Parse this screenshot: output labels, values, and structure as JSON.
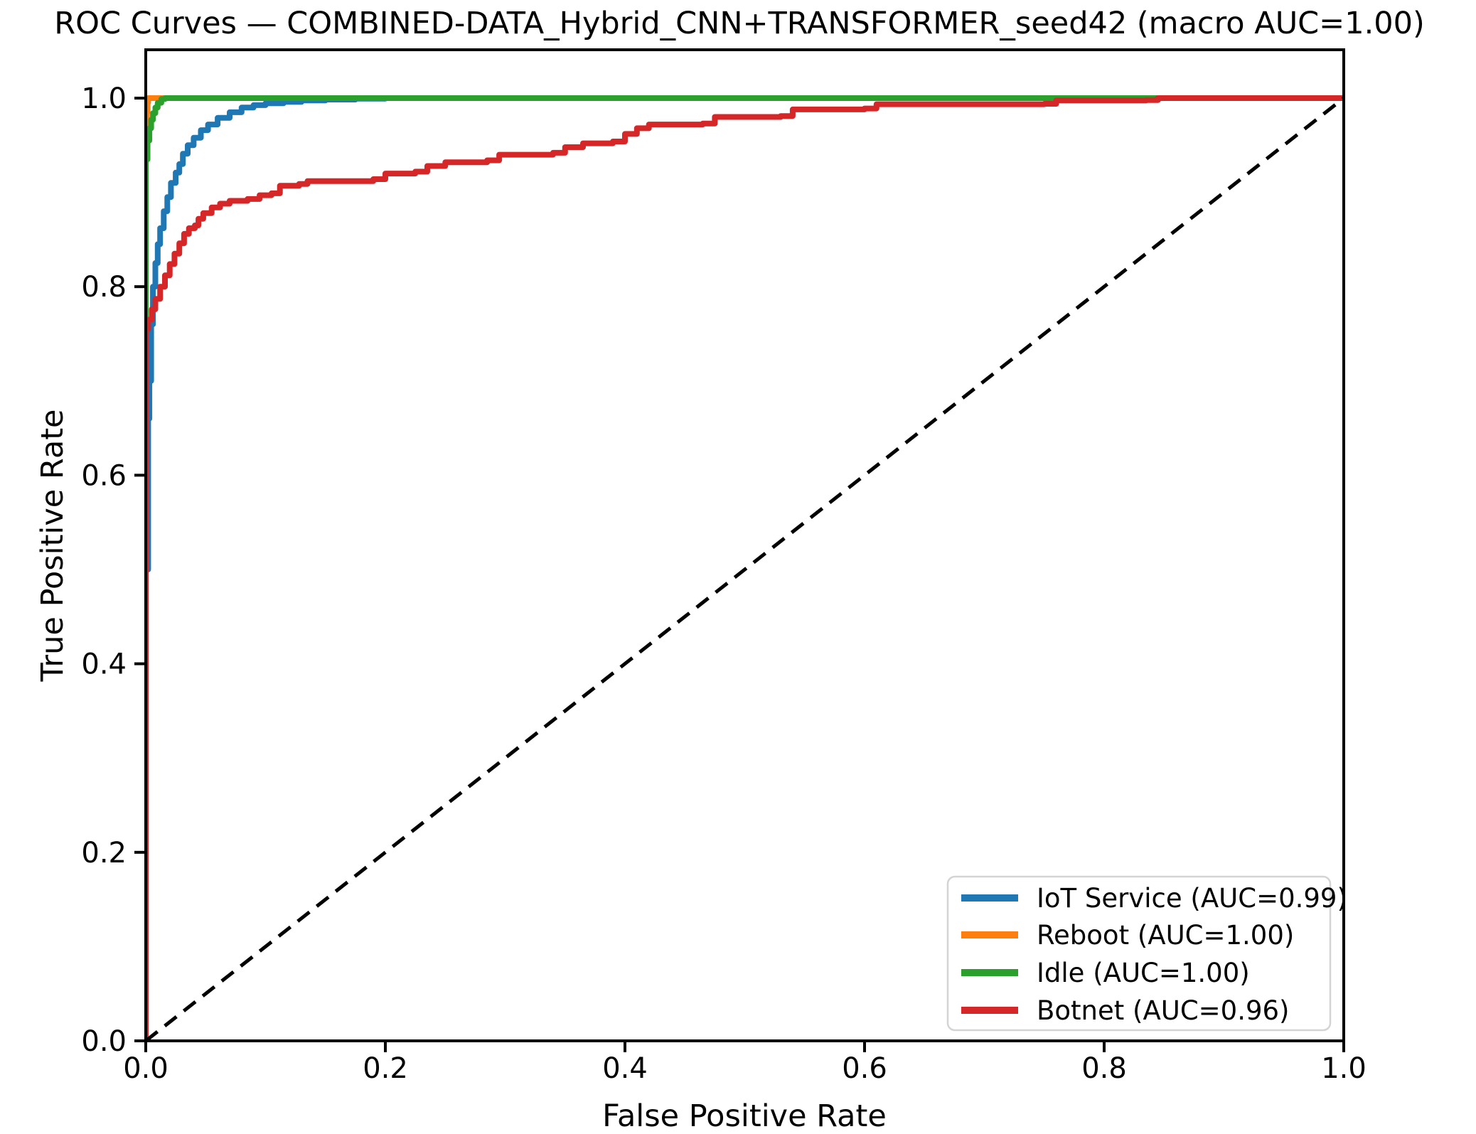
{
  "title": "ROC Curves — COMBINED-DATA_Hybrid_CNN+TRANSFORMER_seed42 (macro AUC=1.00)",
  "chart_data": {
    "type": "line",
    "subtype": "roc-curves",
    "title": "ROC Curves — COMBINED-DATA_Hybrid_CNN+TRANSFORMER_seed42 (macro AUC=1.00)",
    "macro_auc_label": "macro AUC=1.00",
    "xlabel": "False Positive Rate",
    "ylabel": "True Positive Rate",
    "xlim": [
      0.0,
      1.0
    ],
    "ylim": [
      0.0,
      1.05
    ],
    "grid": false,
    "legend_position": "lower right",
    "xticks": [
      {
        "value": 0.0,
        "label": "0.0"
      },
      {
        "value": 0.2,
        "label": "0.2"
      },
      {
        "value": 0.4,
        "label": "0.4"
      },
      {
        "value": 0.6,
        "label": "0.6"
      },
      {
        "value": 0.8,
        "label": "0.8"
      },
      {
        "value": 1.0,
        "label": "1.0"
      }
    ],
    "yticks": [
      {
        "value": 0.0,
        "label": "0.0"
      },
      {
        "value": 0.2,
        "label": "0.2"
      },
      {
        "value": 0.4,
        "label": "0.4"
      },
      {
        "value": 0.6,
        "label": "0.6"
      },
      {
        "value": 0.8,
        "label": "0.8"
      },
      {
        "value": 1.0,
        "label": "1.0"
      }
    ],
    "diagonal": {
      "name": "chance-line",
      "style": "dashed",
      "color": "#000000",
      "points": [
        [
          0,
          0
        ],
        [
          1,
          1
        ]
      ]
    },
    "series": [
      {
        "name": "IoT Service",
        "label": "IoT Service (AUC=0.99)",
        "auc": 0.99,
        "color": "#1f77b4",
        "points": [
          [
            0,
            0
          ],
          [
            0,
            0.5
          ],
          [
            0.002,
            0.66
          ],
          [
            0.003,
            0.7
          ],
          [
            0.0045,
            0.76
          ],
          [
            0.006,
            0.8
          ],
          [
            0.008,
            0.825
          ],
          [
            0.01,
            0.845
          ],
          [
            0.012,
            0.862
          ],
          [
            0.015,
            0.88
          ],
          [
            0.018,
            0.895
          ],
          [
            0.021,
            0.91
          ],
          [
            0.025,
            0.921
          ],
          [
            0.028,
            0.93
          ],
          [
            0.031,
            0.941
          ],
          [
            0.035,
            0.95
          ],
          [
            0.04,
            0.958
          ],
          [
            0.046,
            0.966
          ],
          [
            0.052,
            0.972
          ],
          [
            0.06,
            0.979
          ],
          [
            0.07,
            0.985
          ],
          [
            0.08,
            0.99
          ],
          [
            0.09,
            0.9925
          ],
          [
            0.1,
            0.9945
          ],
          [
            0.115,
            0.996
          ],
          [
            0.13,
            0.9975
          ],
          [
            0.15,
            0.9985
          ],
          [
            0.175,
            0.9995
          ],
          [
            0.2,
            1.0
          ],
          [
            1.0,
            1.0
          ]
        ]
      },
      {
        "name": "Reboot",
        "label": "Reboot (AUC=1.00)",
        "auc": 1.0,
        "color": "#ff7f0e",
        "points": [
          [
            0,
            0
          ],
          [
            0,
            0.97
          ],
          [
            0.001,
            0.985
          ],
          [
            0.0015,
            0.995
          ],
          [
            0.002,
            1.0
          ],
          [
            1.0,
            1.0
          ]
        ]
      },
      {
        "name": "Idle",
        "label": "Idle (AUC=1.00)",
        "auc": 1.0,
        "color": "#2ca02c",
        "points": [
          [
            0,
            0
          ],
          [
            0,
            0.935
          ],
          [
            0.0015,
            0.955
          ],
          [
            0.003,
            0.968
          ],
          [
            0.0045,
            0.977
          ],
          [
            0.006,
            0.984
          ],
          [
            0.008,
            0.99
          ],
          [
            0.01,
            0.995
          ],
          [
            0.013,
            0.999
          ],
          [
            0.016,
            1.0
          ],
          [
            1.0,
            1.0
          ]
        ]
      },
      {
        "name": "Botnet",
        "label": "Botnet (AUC=0.96)",
        "auc": 0.96,
        "color": "#d62728",
        "points": [
          [
            0,
            0
          ],
          [
            0,
            0.755
          ],
          [
            0.002,
            0.765
          ],
          [
            0.005,
            0.776
          ],
          [
            0.008,
            0.787
          ],
          [
            0.012,
            0.8
          ],
          [
            0.016,
            0.812
          ],
          [
            0.02,
            0.824
          ],
          [
            0.024,
            0.835
          ],
          [
            0.028,
            0.846
          ],
          [
            0.032,
            0.856
          ],
          [
            0.036,
            0.862
          ],
          [
            0.041,
            0.865
          ],
          [
            0.044,
            0.872
          ],
          [
            0.048,
            0.878
          ],
          [
            0.055,
            0.884
          ],
          [
            0.062,
            0.888
          ],
          [
            0.07,
            0.891
          ],
          [
            0.085,
            0.893
          ],
          [
            0.095,
            0.897
          ],
          [
            0.105,
            0.899
          ],
          [
            0.112,
            0.907
          ],
          [
            0.128,
            0.909
          ],
          [
            0.135,
            0.912
          ],
          [
            0.19,
            0.914
          ],
          [
            0.2,
            0.92
          ],
          [
            0.225,
            0.922
          ],
          [
            0.235,
            0.928
          ],
          [
            0.25,
            0.932
          ],
          [
            0.285,
            0.934
          ],
          [
            0.295,
            0.94
          ],
          [
            0.34,
            0.942
          ],
          [
            0.35,
            0.948
          ],
          [
            0.365,
            0.952
          ],
          [
            0.39,
            0.954
          ],
          [
            0.4,
            0.962
          ],
          [
            0.41,
            0.968
          ],
          [
            0.42,
            0.972
          ],
          [
            0.465,
            0.973
          ],
          [
            0.475,
            0.98
          ],
          [
            0.53,
            0.981
          ],
          [
            0.54,
            0.988
          ],
          [
            0.6,
            0.989
          ],
          [
            0.61,
            0.9935
          ],
          [
            0.75,
            0.994
          ],
          [
            0.76,
            0.9975
          ],
          [
            0.835,
            0.998
          ],
          [
            0.845,
            1.0
          ],
          [
            1.0,
            1.0
          ]
        ]
      }
    ]
  }
}
